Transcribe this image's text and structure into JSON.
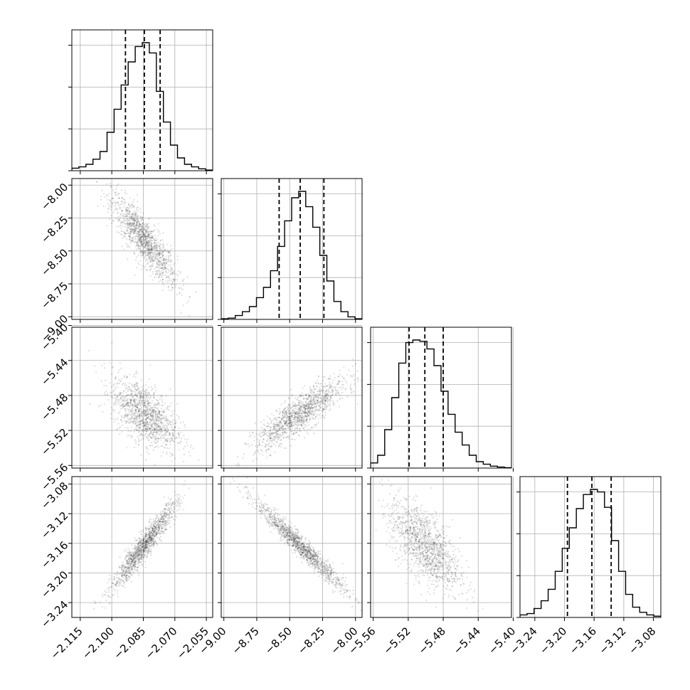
{
  "chart_data": {
    "type": "corner",
    "grid": true,
    "parameters": [
      {
        "range": [
          -2.119,
          -2.052
        ],
        "ticks": [
          -2.115,
          -2.1,
          -2.085,
          -2.07,
          -2.055
        ],
        "tick_labels": [
          "−2.115",
          "−2.100",
          "−2.085",
          "−2.070",
          "−2.055"
        ],
        "median": -2.0845,
        "q16": -2.0935,
        "q84": -2.077,
        "hist": [
          0.02,
          0.03,
          0.05,
          0.09,
          0.15,
          0.3,
          0.48,
          0.67,
          0.85,
          0.97,
          1.0,
          0.92,
          0.62,
          0.38,
          0.2,
          0.1,
          0.05,
          0.03,
          0.015,
          0.005
        ]
      },
      {
        "range": [
          -9.02,
          -7.95
        ],
        "ticks": [
          -9.0,
          -8.75,
          -8.5,
          -8.25,
          -8.0
        ],
        "tick_labels": [
          "−9.00",
          "−8.75",
          "−8.50",
          "−8.25",
          "−8.00"
        ],
        "median": -8.42,
        "q16": -8.58,
        "q84": -8.24,
        "hist": [
          0.005,
          0.01,
          0.03,
          0.06,
          0.1,
          0.17,
          0.25,
          0.38,
          0.57,
          0.77,
          0.95,
          1.0,
          0.88,
          0.72,
          0.5,
          0.3,
          0.14,
          0.06,
          0.02,
          0.005
        ]
      },
      {
        "range": [
          -5.563,
          -5.402
        ],
        "ticks": [
          -5.56,
          -5.52,
          -5.48,
          -5.44,
          -5.4
        ],
        "tick_labels": [
          "−5.56",
          "−5.52",
          "−5.48",
          "−5.44",
          "−5.40"
        ],
        "median": -5.501,
        "q16": -5.519,
        "q84": -5.48,
        "hist": [
          0.04,
          0.1,
          0.3,
          0.55,
          0.82,
          0.98,
          1.0,
          0.99,
          0.93,
          0.8,
          0.6,
          0.42,
          0.28,
          0.18,
          0.1,
          0.05,
          0.03,
          0.015,
          0.008,
          0.003
        ]
      },
      {
        "range": [
          -3.26,
          -3.07
        ],
        "ticks": [
          -3.24,
          -3.2,
          -3.16,
          -3.12,
          -3.08
        ],
        "tick_labels": [
          "−3.24",
          "−3.20",
          "−3.16",
          "−3.12",
          "−3.08"
        ],
        "median": -3.163,
        "q16": -3.196,
        "q84": -3.137,
        "hist": [
          0.02,
          0.03,
          0.07,
          0.13,
          0.22,
          0.36,
          0.54,
          0.7,
          0.85,
          0.96,
          1.0,
          0.98,
          0.86,
          0.6,
          0.36,
          0.18,
          0.08,
          0.04,
          0.02,
          0.01
        ]
      }
    ],
    "pairs": [
      {
        "row": 1,
        "col": 0,
        "mean": [
          -2.0845,
          -8.42
        ],
        "sd": [
          0.0078,
          0.17
        ],
        "rho": -0.86
      },
      {
        "row": 2,
        "col": 0,
        "mean": [
          -2.0845,
          -5.501
        ],
        "sd": [
          0.0078,
          0.02
        ],
        "rho": -0.55
      },
      {
        "row": 2,
        "col": 1,
        "mean": [
          -8.42,
          -5.501
        ],
        "sd": [
          0.17,
          0.02
        ],
        "rho": 0.85
      },
      {
        "row": 3,
        "col": 0,
        "mean": [
          -2.0845,
          -3.163
        ],
        "sd": [
          0.0078,
          0.03
        ],
        "rho": 0.95
      },
      {
        "row": 3,
        "col": 1,
        "mean": [
          -8.42,
          -3.163
        ],
        "sd": [
          0.17,
          0.03
        ],
        "rho": -0.97
      },
      {
        "row": 3,
        "col": 2,
        "mean": [
          -5.501,
          -3.163
        ],
        "sd": [
          0.02,
          0.03
        ],
        "rho": -0.62
      }
    ]
  }
}
